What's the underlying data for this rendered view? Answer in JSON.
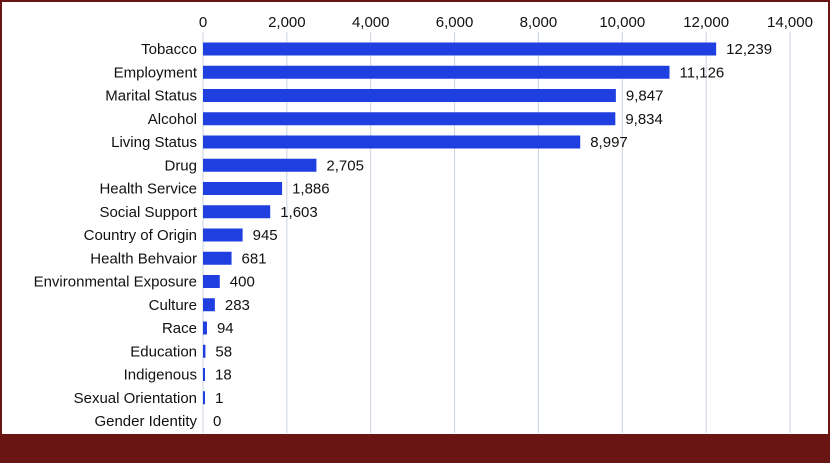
{
  "chart_data": {
    "type": "bar",
    "orientation": "horizontal",
    "title": "",
    "xlabel": "",
    "ylabel": "",
    "xlim": [
      0,
      14000
    ],
    "x_ticks": [
      0,
      2000,
      4000,
      6000,
      8000,
      10000,
      12000,
      14000
    ],
    "x_tick_labels": [
      "0",
      "2,000",
      "4,000",
      "6,000",
      "8,000",
      "10,000",
      "12,000",
      "14,000"
    ],
    "x_axis_position": "top",
    "grid": true,
    "legend": "none",
    "bar_color": "#1f3fe0",
    "grid_color": "#c9d3e0",
    "frame_color": "#6b1414",
    "categories": [
      "Tobacco",
      "Employment",
      "Marital Status",
      "Alcohol",
      "Living Status",
      "Drug",
      "Health Service",
      "Social Support",
      "Country of Origin",
      "Health Behvaior",
      "Environmental Exposure",
      "Culture",
      "Race",
      "Education",
      "Indigenous",
      "Sexual Orientation",
      "Gender Identity"
    ],
    "values": [
      12239,
      11126,
      9847,
      9834,
      8997,
      2705,
      1886,
      1603,
      945,
      681,
      400,
      283,
      94,
      58,
      18,
      1,
      0
    ],
    "value_labels": [
      "12,239",
      "11,126",
      "9,847",
      "9,834",
      "8,997",
      "2,705",
      "1,886",
      "1,603",
      "945",
      "681",
      "400",
      "283",
      "94",
      "58",
      "18",
      "1",
      "0"
    ]
  }
}
